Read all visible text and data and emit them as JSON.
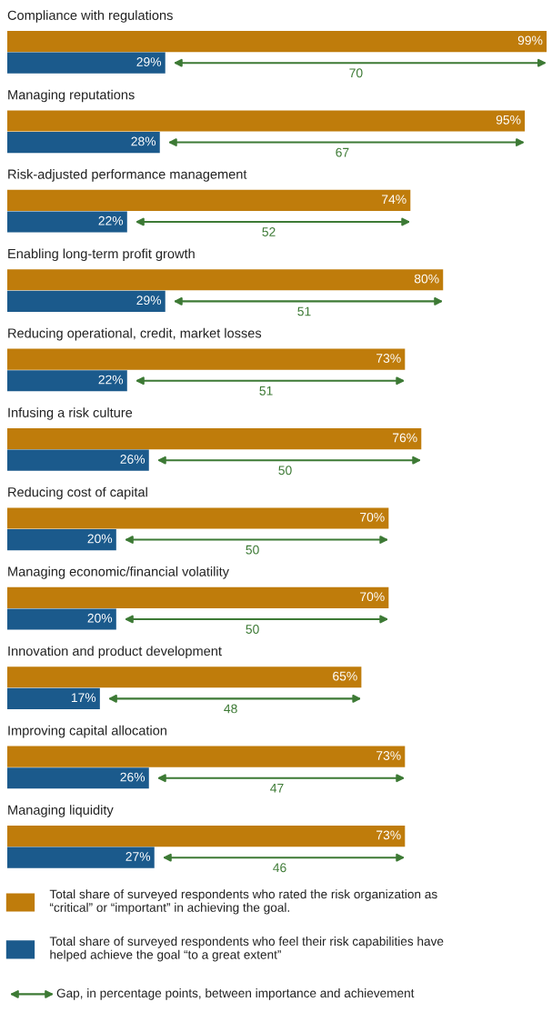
{
  "chart_data": {
    "type": "bar",
    "orientation": "horizontal",
    "legend": "bottom",
    "data_labels": true,
    "categories": [
      "Compliance with regulations",
      "Managing reputations",
      "Risk-adjusted performance management",
      "Enabling long-term profit growth",
      "Reducing operational, credit, market losses",
      "Infusing a risk culture",
      "Reducing cost of capital",
      "Managing economic/financial volatility",
      "Innovation and product development",
      "Improving capital allocation",
      "Managing liquidity"
    ],
    "series": [
      {
        "name": "Total share of surveyed respondents who rated the risk organization as\n“critical” or “important” in achieving the goal.",
        "color": "#bf7c0b",
        "values": [
          99,
          95,
          74,
          80,
          73,
          76,
          70,
          70,
          65,
          73,
          73
        ],
        "value_labels": [
          "99%",
          "95%",
          "74%",
          "80%",
          "73%",
          "76%",
          "70%",
          "70%",
          "65%",
          "73%",
          "73%"
        ]
      },
      {
        "name": "Total share of surveyed respondents who feel their risk capabilities have\nhelped achieve the goal “to a great extent”",
        "color": "#1b5a8c",
        "values": [
          29,
          28,
          22,
          29,
          22,
          26,
          20,
          20,
          17,
          26,
          27
        ],
        "value_labels": [
          "29%",
          "28%",
          "22%",
          "29%",
          "22%",
          "26%",
          "20%",
          "20%",
          "17%",
          "26%",
          "27%"
        ]
      }
    ],
    "annotations": [
      {
        "text": "70",
        "x": 64,
        "y": "Compliance with regulations"
      },
      {
        "text": "67",
        "x": 61.5,
        "y": "Managing reputations"
      },
      {
        "text": "52",
        "x": 48,
        "y": "Risk-adjusted performance management"
      },
      {
        "text": "51",
        "x": 54.5,
        "y": "Enabling long-term profit growth"
      },
      {
        "text": "51",
        "x": 47.5,
        "y": "Reducing operational, credit, market losses"
      },
      {
        "text": "50",
        "x": 51,
        "y": "Infusing a risk culture"
      },
      {
        "text": "50",
        "x": 45,
        "y": "Reducing cost of capital"
      },
      {
        "text": "50",
        "x": 45,
        "y": "Managing economic/financial volatility"
      },
      {
        "text": "48",
        "x": 41,
        "y": "Innovation and product development"
      },
      {
        "text": "47",
        "x": 49.5,
        "y": "Improving capital allocation"
      },
      {
        "text": "46",
        "x": 50,
        "y": "Managing liquidity"
      },
      "Gap, in percentage points, between importance and achievement"
    ]
  }
}
